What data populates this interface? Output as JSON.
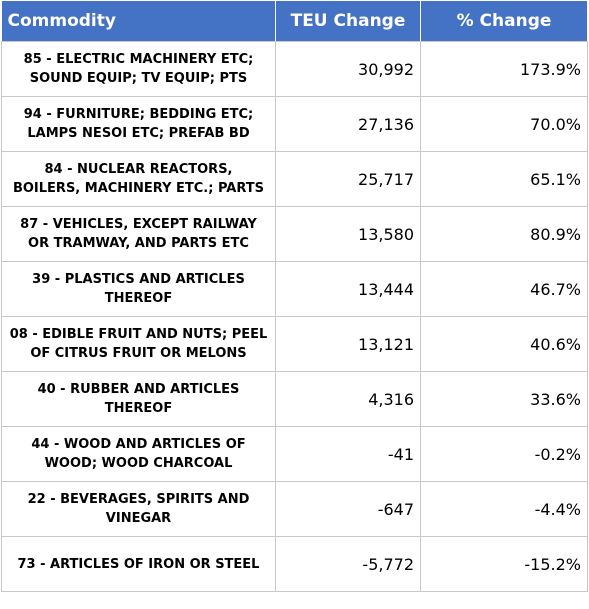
{
  "table": {
    "headers": [
      "Commodity",
      "TEU Change",
      "% Change"
    ],
    "rows": [
      {
        "commodity": [
          "85 - ELECTRIC MACHINERY ETC;",
          "SOUND EQUIP; TV EQUIP; PTS"
        ],
        "teu_change": "30,992",
        "pct_change": "173.9%"
      },
      {
        "commodity": [
          "94 - FURNITURE; BEDDING ETC;",
          "LAMPS NESOI ETC; PREFAB BD"
        ],
        "teu_change": "27,136",
        "pct_change": "70.0%"
      },
      {
        "commodity": [
          "84 - NUCLEAR REACTORS,",
          "BOILERS, MACHINERY ETC.; PARTS"
        ],
        "teu_change": "25,717",
        "pct_change": "65.1%"
      },
      {
        "commodity": [
          "87 - VEHICLES, EXCEPT RAILWAY",
          "OR TRAMWAY, AND PARTS ETC"
        ],
        "teu_change": "13,580",
        "pct_change": "80.9%"
      },
      {
        "commodity": [
          "39 - PLASTICS AND ARTICLES",
          "THEREOF"
        ],
        "teu_change": "13,444",
        "pct_change": "46.7%"
      },
      {
        "commodity": [
          "08 - EDIBLE FRUIT AND NUTS; PEEL",
          "OF CITRUS FRUIT OR MELONS"
        ],
        "teu_change": "13,121",
        "pct_change": "40.6%"
      },
      {
        "commodity": [
          "40 - RUBBER AND ARTICLES",
          "THEREOF"
        ],
        "teu_change": "4,316",
        "pct_change": "33.6%"
      },
      {
        "commodity": [
          "44 - WOOD AND ARTICLES OF",
          "WOOD; WOOD CHARCOAL"
        ],
        "teu_change": "-41",
        "pct_change": "-0.2%"
      },
      {
        "commodity": [
          "22 - BEVERAGES, SPIRITS AND",
          "VINEGAR"
        ],
        "teu_change": "-647",
        "pct_change": "-4.4%"
      },
      {
        "commodity": [
          "73 - ARTICLES OF IRON OR STEEL"
        ],
        "teu_change": "-5,772",
        "pct_change": "-15.2%"
      }
    ]
  },
  "colors": {
    "header_bg": "#4472c4",
    "header_text": "#ffffff",
    "grid": "#c8c8c8"
  }
}
